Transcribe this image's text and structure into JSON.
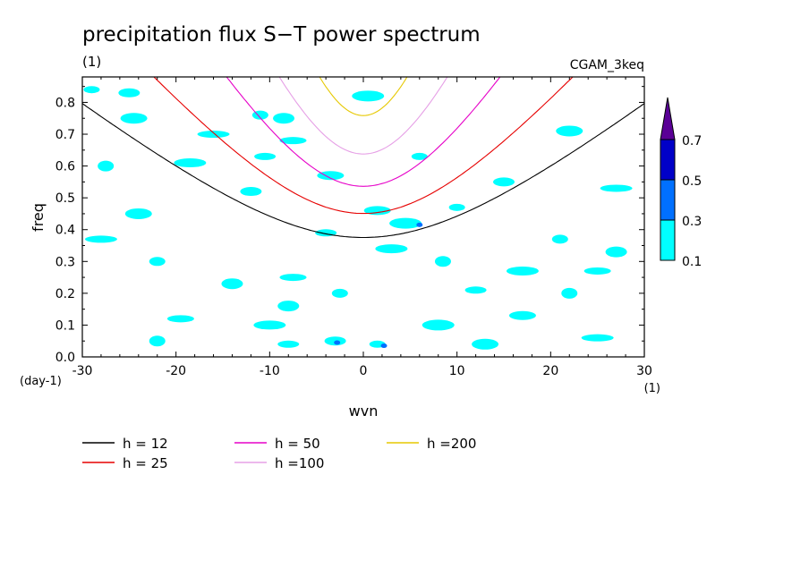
{
  "chart_data": {
    "type": "contour",
    "title": "precipitation flux S−T power spectrum",
    "subtitle": "(1)",
    "dataset": "CGAM_3keq",
    "xlabel": "wvn",
    "ylabel": "freq",
    "x_unit": "(1)",
    "y_unit": "(day-1)",
    "xlim": [
      -30,
      30
    ],
    "ylim": [
      0,
      0.88
    ],
    "xticks": [
      -30,
      -20,
      -10,
      0,
      10,
      20,
      30
    ],
    "xtick_labels": [
      "-30",
      "-20",
      "-10",
      "0",
      "10",
      "20",
      "30"
    ],
    "yticks": [
      0,
      0.1,
      0.2,
      0.3,
      0.4,
      0.5,
      0.6,
      0.7,
      0.8
    ],
    "ytick_labels": [
      "0.0",
      "0.1",
      "0.2",
      "0.3",
      "0.4",
      "0.5",
      "0.6",
      "0.7",
      "0.8"
    ],
    "colorbar": {
      "levels": [
        "0.1",
        "0.3",
        "0.5",
        "0.7"
      ],
      "colors": [
        "#00ffff",
        "#0070ff",
        "#0000c8",
        "#5a0096"
      ]
    },
    "series": [
      {
        "name": "h = 12",
        "h": 12,
        "color": "#000000"
      },
      {
        "name": "h = 25",
        "h": 25,
        "color": "#e60000"
      },
      {
        "name": "h = 50",
        "h": 50,
        "color": "#e600c8"
      },
      {
        "name": "h =100",
        "h": 100,
        "color": "#e6a0e6"
      },
      {
        "name": "h =200",
        "h": 200,
        "color": "#e6c800"
      }
    ],
    "contours": [
      {
        "x": -29,
        "y": 0.84,
        "level": "0.1"
      },
      {
        "x": -25,
        "y": 0.83,
        "level": "0.1"
      },
      {
        "x": -24.5,
        "y": 0.75,
        "level": "0.1"
      },
      {
        "x": -16,
        "y": 0.7,
        "level": "0.1"
      },
      {
        "x": -11,
        "y": 0.76,
        "level": "0.1"
      },
      {
        "x": -8.5,
        "y": 0.75,
        "level": "0.1"
      },
      {
        "x": -7.5,
        "y": 0.68,
        "level": "0.1"
      },
      {
        "x": -18.5,
        "y": 0.61,
        "level": "0.1"
      },
      {
        "x": -27.5,
        "y": 0.6,
        "level": "0.1"
      },
      {
        "x": -10.5,
        "y": 0.63,
        "level": "0.1"
      },
      {
        "x": -3.5,
        "y": 0.57,
        "level": "0.1"
      },
      {
        "x": 0.5,
        "y": 0.82,
        "level": "0.1"
      },
      {
        "x": 6,
        "y": 0.63,
        "level": "0.1"
      },
      {
        "x": -12,
        "y": 0.52,
        "level": "0.1"
      },
      {
        "x": -24,
        "y": 0.45,
        "level": "0.1"
      },
      {
        "x": -28,
        "y": 0.37,
        "level": "0.1"
      },
      {
        "x": -22,
        "y": 0.3,
        "level": "0.1"
      },
      {
        "x": -14,
        "y": 0.23,
        "level": "0.1"
      },
      {
        "x": -19.5,
        "y": 0.12,
        "level": "0.1"
      },
      {
        "x": -10,
        "y": 0.1,
        "level": "0.1"
      },
      {
        "x": -22,
        "y": 0.05,
        "level": "0.1"
      },
      {
        "x": -8,
        "y": 0.04,
        "level": "0.1"
      },
      {
        "x": 1.5,
        "y": 0.46,
        "level": "0.1"
      },
      {
        "x": 4.5,
        "y": 0.42,
        "level": "0.1"
      },
      {
        "x": 10,
        "y": 0.47,
        "level": "0.1"
      },
      {
        "x": 15,
        "y": 0.55,
        "level": "0.1"
      },
      {
        "x": 22,
        "y": 0.71,
        "level": "0.1"
      },
      {
        "x": 27,
        "y": 0.53,
        "level": "0.1"
      },
      {
        "x": 21,
        "y": 0.37,
        "level": "0.1"
      },
      {
        "x": 27,
        "y": 0.33,
        "level": "0.1"
      },
      {
        "x": 25,
        "y": 0.27,
        "level": "0.1"
      },
      {
        "x": 17,
        "y": 0.27,
        "level": "0.1"
      },
      {
        "x": 22,
        "y": 0.2,
        "level": "0.1"
      },
      {
        "x": 12,
        "y": 0.21,
        "level": "0.1"
      },
      {
        "x": 17,
        "y": 0.13,
        "level": "0.1"
      },
      {
        "x": 8,
        "y": 0.1,
        "level": "0.1"
      },
      {
        "x": 1.5,
        "y": 0.04,
        "level": "0.1"
      },
      {
        "x": -3,
        "y": 0.05,
        "level": "0.1"
      },
      {
        "x": 13,
        "y": 0.04,
        "level": "0.1"
      },
      {
        "x": 25,
        "y": 0.06,
        "level": "0.1"
      },
      {
        "x": -2.5,
        "y": 0.2,
        "level": "0.1"
      },
      {
        "x": -8,
        "y": 0.16,
        "level": "0.1"
      },
      {
        "x": -7.5,
        "y": 0.25,
        "level": "0.1"
      },
      {
        "x": 3,
        "y": 0.34,
        "level": "0.1"
      },
      {
        "x": 8.5,
        "y": 0.3,
        "level": "0.1"
      },
      {
        "x": -4,
        "y": 0.39,
        "level": "0.1"
      },
      {
        "x": 6,
        "y": 0.415,
        "level": "0.3"
      },
      {
        "x": -2.8,
        "y": 0.045,
        "level": "0.3"
      },
      {
        "x": 2.2,
        "y": 0.035,
        "level": "0.3"
      }
    ]
  },
  "legend": {
    "items": [
      {
        "label": "h = 12",
        "color": "#000000"
      },
      {
        "label": "h = 25",
        "color": "#e60000"
      },
      {
        "label": "h = 50",
        "color": "#e600c8"
      },
      {
        "label": "h =100",
        "color": "#e6a0e6"
      },
      {
        "label": "h =200",
        "color": "#e6c800"
      }
    ]
  }
}
